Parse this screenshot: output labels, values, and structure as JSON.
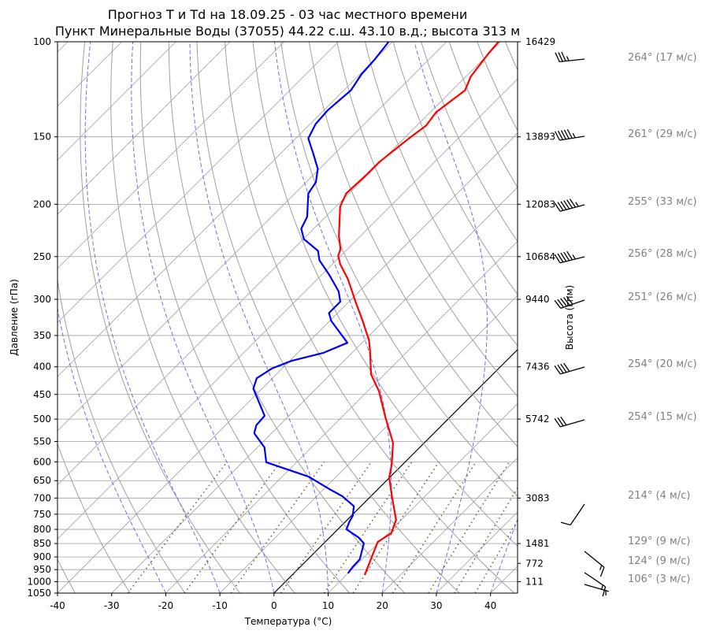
{
  "chart_data": {
    "type": "line",
    "subtype": "skew-t log-p",
    "title_line1": "Прогноз T и Td на 18.09.25 - 03 час местного времени",
    "title_line2": "Пункт Минеральные Воды (37055) 44.22 с.ш. 43.10 в.д.; высота 313 м",
    "xlabel": "Температура (°C)",
    "ylabel": "Давление (гПа)",
    "ylabel_right": "Высота (гпм)",
    "xlim": [
      -40,
      45
    ],
    "ylim": [
      1050,
      100
    ],
    "x_ticks": [
      "-40",
      "-30",
      "-20",
      "-10",
      "0",
      "10",
      "20",
      "30",
      "40"
    ],
    "y_ticks": [
      "100",
      "150",
      "200",
      "250",
      "300",
      "350",
      "400",
      "450",
      "500",
      "550",
      "600",
      "650",
      "700",
      "750",
      "800",
      "850",
      "900",
      "950",
      "1000",
      "1050"
    ],
    "height_ticks": [
      {
        "p": 100,
        "label": "16429"
      },
      {
        "p": 150,
        "label": "13893"
      },
      {
        "p": 200,
        "label": "12083"
      },
      {
        "p": 250,
        "label": "10684"
      },
      {
        "p": 300,
        "label": "9440"
      },
      {
        "p": 400,
        "label": "7436"
      },
      {
        "p": 500,
        "label": "5742"
      },
      {
        "p": 700,
        "label": "3083"
      },
      {
        "p": 850,
        "label": "1481"
      },
      {
        "p": 925,
        "label": "772"
      },
      {
        "p": 1000,
        "label": "111"
      }
    ],
    "series": [
      {
        "name": "T",
        "color": "#ff0000",
        "points": [
          [
            972,
            13.4
          ],
          [
            897,
            11.3
          ],
          [
            844,
            9.7
          ],
          [
            813,
            10.6
          ],
          [
            768,
            9.0
          ],
          [
            695,
            3.9
          ],
          [
            641,
            -0.1
          ],
          [
            607,
            -2.0
          ],
          [
            553,
            -5.8
          ],
          [
            497,
            -11.8
          ],
          [
            444,
            -17.9
          ],
          [
            413,
            -22.5
          ],
          [
            373,
            -27.1
          ],
          [
            357,
            -29.2
          ],
          [
            329,
            -33.9
          ],
          [
            305,
            -38.4
          ],
          [
            275,
            -44.4
          ],
          [
            258,
            -48.6
          ],
          [
            249,
            -50.5
          ],
          [
            242,
            -51.3
          ],
          [
            229,
            -54.0
          ],
          [
            202,
            -59.2
          ],
          [
            191,
            -60.5
          ],
          [
            176,
            -60.2
          ],
          [
            167,
            -60.2
          ],
          [
            151,
            -59.1
          ],
          [
            143,
            -58.3
          ],
          [
            135,
            -58.9
          ],
          [
            123,
            -57.6
          ],
          [
            116,
            -59.1
          ],
          [
            105,
            -60.1
          ],
          [
            100,
            -60.4
          ]
        ]
      },
      {
        "name": "Td",
        "color": "#0000ff",
        "points": [
          [
            965,
            10.0
          ],
          [
            940,
            9.7
          ],
          [
            909,
            9.6
          ],
          [
            873,
            8.3
          ],
          [
            849,
            7.4
          ],
          [
            827,
            5.2
          ],
          [
            800,
            1.6
          ],
          [
            773,
            0.7
          ],
          [
            756,
            0.3
          ],
          [
            725,
            -1.3
          ],
          [
            695,
            -5.2
          ],
          [
            676,
            -8.6
          ],
          [
            639,
            -15.1
          ],
          [
            601,
            -25.6
          ],
          [
            564,
            -28.7
          ],
          [
            531,
            -33.2
          ],
          [
            513,
            -34.3
          ],
          [
            493,
            -34.5
          ],
          [
            439,
            -41.6
          ],
          [
            420,
            -42.9
          ],
          [
            403,
            -41.9
          ],
          [
            390,
            -39.7
          ],
          [
            377,
            -35.3
          ],
          [
            361,
            -32.7
          ],
          [
            329,
            -39.7
          ],
          [
            318,
            -41.6
          ],
          [
            303,
            -41.6
          ],
          [
            290,
            -43.8
          ],
          [
            271,
            -48.4
          ],
          [
            254,
            -53.1
          ],
          [
            244,
            -55.1
          ],
          [
            232,
            -59.9
          ],
          [
            222,
            -62.3
          ],
          [
            211,
            -63.4
          ],
          [
            191,
            -67.5
          ],
          [
            182,
            -68.2
          ],
          [
            172,
            -70.3
          ],
          [
            161,
            -74.0
          ],
          [
            151,
            -77.7
          ],
          [
            142,
            -79.0
          ],
          [
            134,
            -79.3
          ],
          [
            123,
            -78.7
          ],
          [
            115,
            -79.7
          ],
          [
            108,
            -80.0
          ],
          [
            100,
            -80.7
          ]
        ]
      }
    ],
    "reference_lines": {
      "isotherm_0_color": "#000000",
      "dry_adiabat_color": "#a0a0a0",
      "moist_adiabat_color": "#6b6bff",
      "mixing_ratio_color": "#8b5a2b"
    },
    "winds": [
      {
        "p": 100,
        "dir": 264,
        "speed": 17,
        "label": "264° (17 м/с)"
      },
      {
        "p": 150,
        "dir": 261,
        "speed": 29,
        "label": "261° (29 м/с)"
      },
      {
        "p": 200,
        "dir": 255,
        "speed": 33,
        "label": "255° (33 м/с)"
      },
      {
        "p": 250,
        "dir": 256,
        "speed": 28,
        "label": "256° (28 м/с)"
      },
      {
        "p": 300,
        "dir": 251,
        "speed": 26,
        "label": "251° (26 м/с)"
      },
      {
        "p": 400,
        "dir": 254,
        "speed": 20,
        "label": "254° (20 м/с)"
      },
      {
        "p": 500,
        "dir": 254,
        "speed": 15,
        "label": "254° (15 м/с)"
      },
      {
        "p": 700,
        "dir": 214,
        "speed": 4,
        "label": "214° (4 м/с)"
      },
      {
        "p": 850,
        "dir": 129,
        "speed": 9,
        "label": "129° (9 м/с)"
      },
      {
        "p": 925,
        "dir": 124,
        "speed": 9,
        "label": "124° (9 м/с)"
      },
      {
        "p": 1000,
        "dir": 106,
        "speed": 3,
        "label": "106° (3 м/с)"
      }
    ]
  }
}
